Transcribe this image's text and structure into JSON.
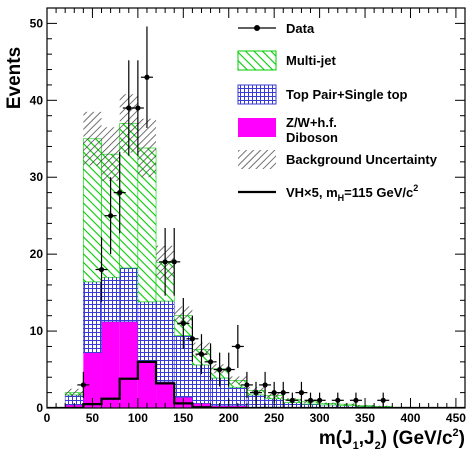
{
  "chart_data": {
    "type": "bar",
    "stacked": true,
    "xlabel": "m(J",
    "xlabel_sub1": "1",
    "xlabel_mid": ",J",
    "xlabel_sub2": "2",
    "xlabel_end": ") (GeV/c",
    "xlabel_sup": "2",
    "xlabel_close": ")",
    "ylabel": "Events",
    "xlim": [
      0,
      460
    ],
    "ylim": [
      0,
      52
    ],
    "xticks": [
      0,
      50,
      100,
      150,
      200,
      250,
      300,
      350,
      400,
      450
    ],
    "yticks": [
      0,
      10,
      20,
      30,
      40,
      50
    ],
    "bin_edges": [
      0,
      20,
      40,
      60,
      80,
      100,
      120,
      140,
      160,
      180,
      200,
      220,
      240,
      260,
      280,
      300,
      320,
      340,
      360,
      380,
      400,
      420,
      440,
      460
    ],
    "series": [
      {
        "name": "Z/W+h.f.",
        "name2": "Diboson",
        "color": "#ff00ff",
        "values": [
          0,
          0.4,
          7.2,
          11.2,
          11.2,
          6.0,
          3.4,
          1.4,
          0.6,
          0.3,
          0.3,
          0.1,
          0.1,
          0,
          0,
          0,
          0,
          0,
          0,
          0,
          0,
          0,
          0
        ]
      },
      {
        "name": "Top Pair+Single top",
        "color": "#3030dd",
        "values": [
          0,
          1.3,
          9.2,
          5.8,
          7.0,
          7.8,
          10.5,
          8.0,
          5.0,
          3.6,
          2.4,
          1.6,
          1.1,
          0.7,
          0.5,
          0.4,
          0.3,
          0.2,
          0.1,
          0,
          0,
          0,
          0
        ]
      },
      {
        "name": "Multi-jet",
        "color": "#00cc00",
        "values": [
          0,
          0.3,
          18.6,
          16.0,
          18.8,
          20.0,
          5.0,
          2.6,
          2.0,
          1.2,
          0.9,
          0.6,
          0.4,
          0.4,
          0.3,
          0.2,
          0.2,
          0.1,
          0.1,
          0.1,
          0,
          0,
          0
        ]
      }
    ],
    "uncertainty": {
      "name": "Background Uncertainty",
      "values": [
        0,
        0.5,
        3.5,
        3.5,
        3.8,
        3.8,
        2.2,
        1.2,
        0.9,
        0.6,
        0.5,
        0.4,
        0.3,
        0.2,
        0.2,
        0.1,
        0.1,
        0.1,
        0.1,
        0,
        0,
        0,
        0
      ]
    },
    "signal": {
      "name": "VH×5, m",
      "name_sub": "H",
      "name_rest": "=115 GeV/c",
      "name_sup": "2",
      "values": [
        0,
        0,
        0.5,
        1.2,
        3.8,
        6.0,
        3.2,
        0.6,
        0.1,
        0,
        0,
        0,
        0,
        0,
        0,
        0,
        0,
        0,
        0,
        0,
        0,
        0,
        0
      ]
    },
    "data": {
      "name": "Data",
      "x": [
        40,
        60,
        70,
        80,
        90,
        100,
        110,
        130,
        140,
        150,
        160,
        170,
        180,
        190,
        200,
        210,
        220,
        230,
        240,
        250,
        260,
        270,
        280,
        290,
        300,
        320,
        340,
        370
      ],
      "y": [
        3,
        18,
        25,
        28,
        39,
        39,
        43,
        19,
        19,
        11,
        9,
        7,
        6,
        5,
        5,
        8,
        3,
        2,
        3,
        2,
        2,
        1,
        2,
        1,
        1,
        1,
        1,
        1
      ],
      "err": [
        1.7,
        4.2,
        5.0,
        5.3,
        6.2,
        6.2,
        6.6,
        4.4,
        4.4,
        3.3,
        3.0,
        2.6,
        2.4,
        2.2,
        2.2,
        2.8,
        1.7,
        1.4,
        1.7,
        1.4,
        1.4,
        1,
        1.4,
        1,
        1,
        1,
        1,
        1
      ]
    }
  }
}
